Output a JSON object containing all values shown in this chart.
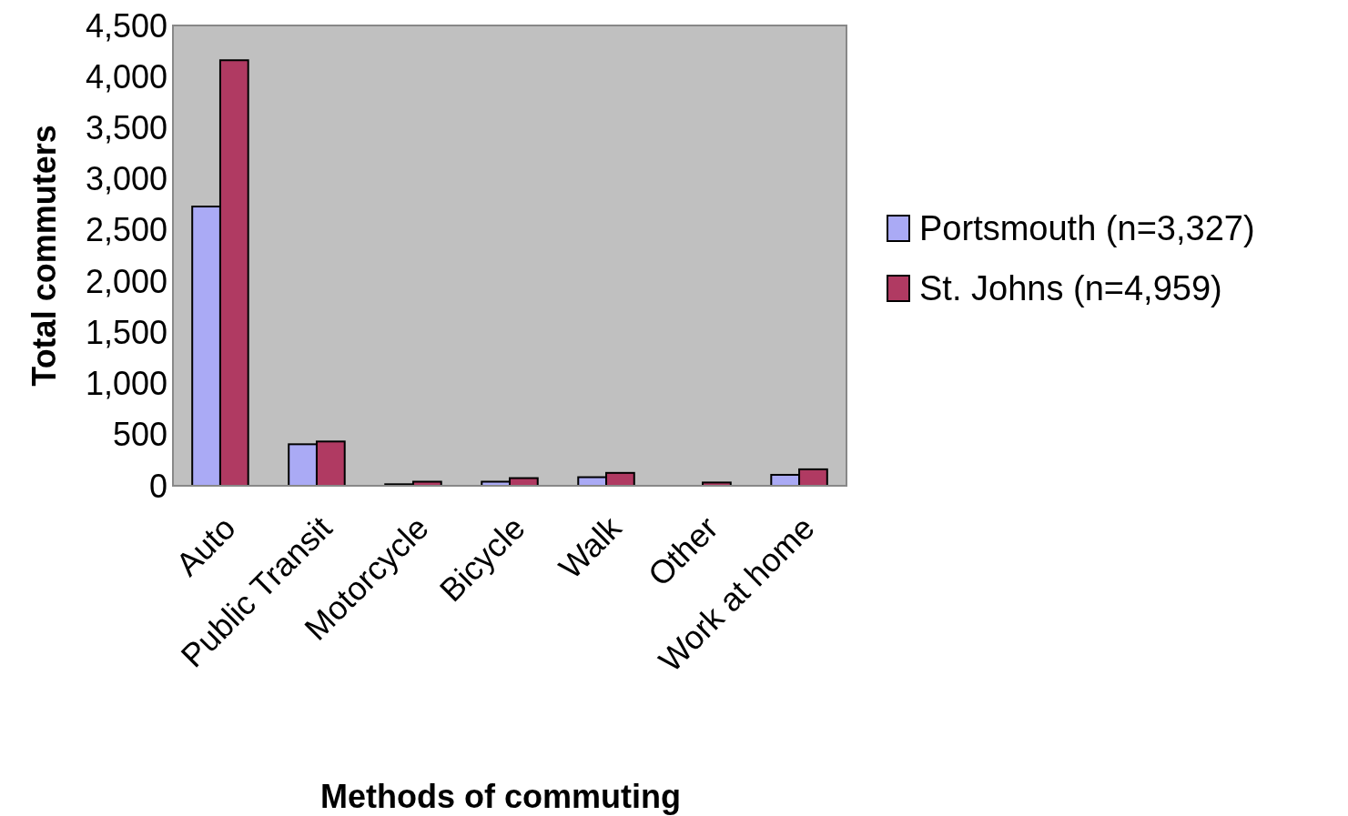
{
  "chart_data": {
    "type": "bar",
    "xlabel": "Methods of commuting",
    "ylabel": "Total commuters",
    "categories": [
      "Auto",
      "Public Transit",
      "Motorcycle",
      "Bicycle",
      "Walk",
      "Other",
      "Work at home"
    ],
    "series": [
      {
        "name": "Portsmouth (n=3,327)",
        "color": "#aaaaf5",
        "values": [
          2730,
          406,
          15,
          40,
          84,
          0,
          107
        ]
      },
      {
        "name": "St. Johns (n=4,959)",
        "color": "#b03a62",
        "values": [
          4160,
          433,
          40,
          75,
          126,
          32,
          161
        ]
      }
    ],
    "ylim": [
      0,
      4500
    ],
    "yticks": [
      {
        "value": 0,
        "label": "0"
      },
      {
        "value": 500,
        "label": "500"
      },
      {
        "value": 1000,
        "label": "1,000"
      },
      {
        "value": 1500,
        "label": "1,500"
      },
      {
        "value": 2000,
        "label": "2,000"
      },
      {
        "value": 2500,
        "label": "2,500"
      },
      {
        "value": 3000,
        "label": "3,000"
      },
      {
        "value": 3500,
        "label": "3,500"
      },
      {
        "value": 4000,
        "label": "4,000"
      },
      {
        "value": 4500,
        "label": "4,500"
      }
    ],
    "grid": false,
    "legend": "right"
  }
}
